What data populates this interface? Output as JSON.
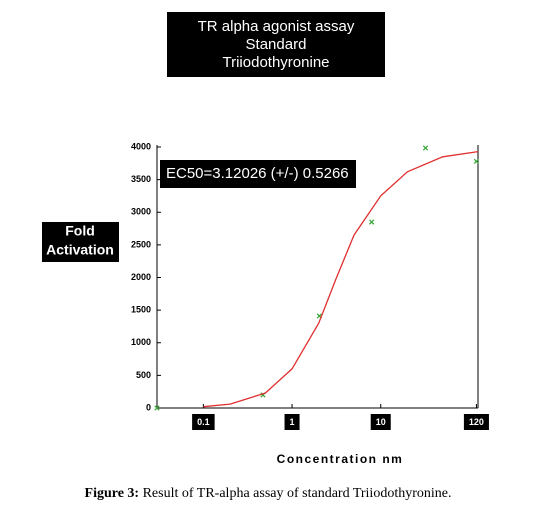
{
  "chart_data": {
    "type": "scatter",
    "title_lines": [
      "TR alpha agonist assay",
      "Standard",
      "Triiodothyronine"
    ],
    "annotation": "EC50=3.12026 (+/-) 0.5266",
    "ylabel_lines": [
      "Fold",
      "Activation"
    ],
    "xlabel": "Concentration nm",
    "caption_label": "Figure 3:",
    "caption_text": "Result of TR-alpha assay of standard Triiodothyronine.",
    "xscale": "log",
    "xlim": [
      0.03,
      125
    ],
    "ylim": [
      0,
      4000
    ],
    "xticks": [
      0.1,
      1,
      10,
      120
    ],
    "yticks": [
      0,
      500,
      1000,
      1500,
      2000,
      2500,
      3000,
      3500,
      4000
    ],
    "grid": false,
    "series": [
      {
        "name": "data",
        "color": "#3aa83a",
        "x": [
          0.03,
          0.47,
          2.03,
          7.9,
          32,
          120
        ],
        "values": [
          0,
          200,
          1410,
          2850,
          3985,
          3780
        ]
      },
      {
        "name": "fit",
        "color": "#e03030",
        "x": [
          0.1,
          0.2,
          0.5,
          1,
          2,
          3.12,
          5,
          10,
          20,
          50,
          125
        ],
        "values": [
          20,
          60,
          230,
          600,
          1300,
          1975,
          2650,
          3250,
          3620,
          3850,
          3930
        ]
      }
    ]
  }
}
